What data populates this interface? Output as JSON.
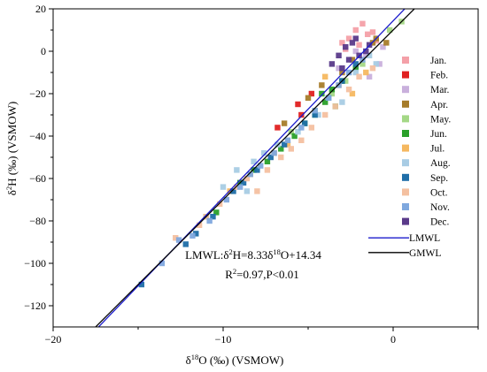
{
  "chart_data": {
    "type": "scatter",
    "xlabel": "δ18O (‰) (VSMOW)",
    "ylabel": "δ2H (‰) (VSMOW)",
    "xlim": [
      -20,
      5
    ],
    "ylim": [
      -130,
      20
    ],
    "x_ticks": [
      -20,
      -10,
      0
    ],
    "y_ticks": [
      -120,
      -100,
      -80,
      -60,
      -40,
      -20,
      0,
      20
    ],
    "legend_position": "right",
    "series": [
      {
        "name": "Jan.",
        "color": "#f4a0a8",
        "points": [
          [
            -1.8,
            13
          ],
          [
            -2.2,
            10
          ],
          [
            -1.5,
            8
          ],
          [
            -2.6,
            6
          ],
          [
            -1.2,
            9
          ],
          [
            -3.0,
            4
          ],
          [
            -2.0,
            3
          ],
          [
            -1.0,
            5
          ],
          [
            -2.8,
            1
          ]
        ]
      },
      {
        "name": "Feb.",
        "color": "#e02020",
        "points": [
          [
            -5.6,
            -25
          ],
          [
            -5.4,
            -30
          ],
          [
            -6.8,
            -36
          ],
          [
            -4.8,
            -20
          ]
        ]
      },
      {
        "name": "Mar.",
        "color": "#c9b0dc",
        "points": [
          [
            -0.8,
            -6
          ],
          [
            -1.6,
            -2
          ],
          [
            -2.2,
            0
          ],
          [
            -0.6,
            2
          ],
          [
            -3.2,
            -8
          ],
          [
            -1.4,
            -12
          ]
        ]
      },
      {
        "name": "Apr.",
        "color": "#a67c2a",
        "points": [
          [
            -1.2,
            4
          ],
          [
            -1.0,
            6
          ],
          [
            -2.4,
            -4
          ],
          [
            -3.0,
            -10
          ],
          [
            -4.2,
            -16
          ],
          [
            -5.0,
            -22
          ],
          [
            -6.4,
            -34
          ],
          [
            -0.4,
            4
          ]
        ]
      },
      {
        "name": "May.",
        "color": "#a4d886",
        "points": [
          [
            0.5,
            14
          ],
          [
            -0.2,
            10
          ],
          [
            -1.8,
            -6
          ],
          [
            -2.8,
            -14
          ],
          [
            -3.6,
            -20
          ],
          [
            -4.6,
            -28
          ],
          [
            -6.0,
            -38
          ]
        ]
      },
      {
        "name": "Jun.",
        "color": "#2aa02a",
        "points": [
          [
            -3.0,
            -14
          ],
          [
            -3.6,
            -18
          ],
          [
            -4.0,
            -24
          ],
          [
            -4.6,
            -30
          ],
          [
            -5.2,
            -34
          ],
          [
            -5.8,
            -40
          ],
          [
            -6.6,
            -46
          ],
          [
            -7.4,
            -52
          ],
          [
            -8.2,
            -56
          ],
          [
            -9.0,
            -62
          ],
          [
            -10.4,
            -76
          ],
          [
            -11.0,
            -78
          ],
          [
            -2.2,
            -8
          ],
          [
            -3.4,
            -26
          ],
          [
            -4.2,
            -20
          ]
        ]
      },
      {
        "name": "Jul.",
        "color": "#f5b860",
        "points": [
          [
            -2.4,
            -20
          ],
          [
            -3.2,
            -16
          ],
          [
            -4.0,
            -12
          ],
          [
            -6.2,
            -44
          ],
          [
            -7.0,
            -48
          ],
          [
            -8.4,
            -58
          ],
          [
            -9.6,
            -66
          ],
          [
            -1.6,
            -10
          ]
        ]
      },
      {
        "name": "Aug.",
        "color": "#a8cce4",
        "points": [
          [
            -1.4,
            -2
          ],
          [
            -2.2,
            -10
          ],
          [
            -3.0,
            -24
          ],
          [
            -4.4,
            -30
          ],
          [
            -5.6,
            -38
          ],
          [
            -6.8,
            -44
          ],
          [
            -7.6,
            -48
          ],
          [
            -8.2,
            -52
          ],
          [
            -9.2,
            -56
          ],
          [
            -10.0,
            -64
          ],
          [
            -8.6,
            -66
          ],
          [
            -1.0,
            -6
          ]
        ]
      },
      {
        "name": "Sep.",
        "color": "#1f6ea8",
        "points": [
          [
            -14.8,
            -110
          ],
          [
            -12.2,
            -91
          ],
          [
            -11.6,
            -86
          ],
          [
            -10.6,
            -78
          ],
          [
            -9.4,
            -66
          ],
          [
            -8.8,
            -62
          ],
          [
            -8.0,
            -56
          ],
          [
            -7.2,
            -50
          ],
          [
            -6.4,
            -44
          ],
          [
            -5.2,
            -34
          ],
          [
            -4.6,
            -30
          ],
          [
            -3.8,
            -22
          ],
          [
            -3.0,
            -14
          ],
          [
            -2.2,
            -6
          ]
        ]
      },
      {
        "name": "Oct.",
        "color": "#f4c0a0",
        "points": [
          [
            -12.8,
            -88
          ],
          [
            -11.4,
            -82
          ],
          [
            -11.0,
            -78
          ],
          [
            -10.2,
            -72
          ],
          [
            -9.2,
            -64
          ],
          [
            -8.6,
            -60
          ],
          [
            -8.0,
            -66
          ],
          [
            -7.4,
            -56
          ],
          [
            -6.6,
            -50
          ],
          [
            -6.0,
            -46
          ],
          [
            -5.4,
            -42
          ],
          [
            -4.8,
            -36
          ],
          [
            -4.0,
            -30
          ],
          [
            -3.4,
            -26
          ],
          [
            -2.6,
            -18
          ],
          [
            -2.0,
            -12
          ],
          [
            -1.2,
            -8
          ]
        ]
      },
      {
        "name": "Nov.",
        "color": "#7fa8de",
        "points": [
          [
            -13.6,
            -100
          ],
          [
            -12.6,
            -89
          ],
          [
            -11.8,
            -87
          ],
          [
            -10.8,
            -80
          ],
          [
            -9.8,
            -70
          ],
          [
            -9.0,
            -64
          ],
          [
            -8.4,
            -58
          ],
          [
            -7.8,
            -54
          ],
          [
            -7.0,
            -48
          ],
          [
            -6.2,
            -42
          ],
          [
            -5.4,
            -36
          ],
          [
            -4.6,
            -28
          ],
          [
            -3.8,
            -22
          ],
          [
            -3.2,
            -16
          ],
          [
            -2.6,
            -10
          ],
          [
            -1.8,
            -4
          ]
        ]
      },
      {
        "name": "Dec.",
        "color": "#5a3a8a",
        "points": [
          [
            -3.6,
            -6
          ],
          [
            -3.2,
            -2
          ],
          [
            -2.8,
            2
          ],
          [
            -2.4,
            4
          ],
          [
            -2.0,
            -2
          ],
          [
            -1.6,
            0
          ],
          [
            -3.0,
            -8
          ],
          [
            -2.2,
            6
          ],
          [
            -1.4,
            3
          ],
          [
            -2.6,
            -4
          ]
        ]
      }
    ],
    "lines": [
      {
        "name": "LMWL",
        "color": "#1c1ccc",
        "slope": 8.33,
        "intercept": 14.34
      },
      {
        "name": "GMWL",
        "color": "#000000",
        "slope": 8,
        "intercept": 10
      }
    ],
    "annotations": [
      "LMWL:δ2H=8.33δ18O+14.34",
      "R2=0.97,P<0.01"
    ]
  }
}
